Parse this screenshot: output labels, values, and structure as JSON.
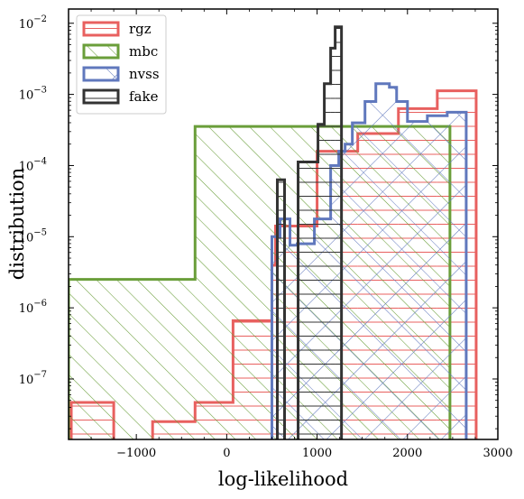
{
  "chart_data": {
    "type": "histogram",
    "title": "",
    "xlabel": "log-likelihood",
    "ylabel": "distribution",
    "xlim": [
      -1750,
      3000
    ],
    "ylim_log10": [
      -7.85,
      -1.8
    ],
    "y_scale": "log",
    "x_ticks": [
      -1000,
      0,
      1000,
      2000,
      3000
    ],
    "x_tick_labels": [
      "−1000",
      "0",
      "1000",
      "2000",
      "3000"
    ],
    "y_ticks_log10": [
      -7,
      -6,
      -5,
      -4,
      -3,
      -2
    ],
    "y_tick_labels": [
      "10",
      "10",
      "10",
      "10",
      "10",
      "10"
    ],
    "y_tick_exponents": [
      "−7",
      "−6",
      "−5",
      "−4",
      "−3",
      "−2"
    ],
    "legend_position": "top-left",
    "series": [
      {
        "name": "rgz",
        "color": "#e8605f",
        "hatch": "horizontal",
        "steps": [
          {
            "x0": -1720,
            "x1": -1250,
            "log10y": -7.33
          },
          {
            "x0": -1250,
            "x1": -820,
            "log10y": -9
          },
          {
            "x0": -820,
            "x1": -350,
            "log10y": -7.6
          },
          {
            "x0": -350,
            "x1": 70,
            "log10y": -7.33
          },
          {
            "x0": 70,
            "x1": 500,
            "log10y": -6.18
          },
          {
            "x0": 500,
            "x1": 540,
            "log10y": -5.4
          },
          {
            "x0": 540,
            "x1": 1000,
            "log10y": -4.85
          },
          {
            "x0": 1000,
            "x1": 1450,
            "log10y": -3.8
          },
          {
            "x0": 1450,
            "x1": 1900,
            "log10y": -3.55
          },
          {
            "x0": 1900,
            "x1": 2330,
            "log10y": -3.2
          },
          {
            "x0": 2330,
            "x1": 2760,
            "log10y": -2.95
          }
        ]
      },
      {
        "name": "mbc",
        "color": "#6a9e3a",
        "hatch": "diagonal",
        "steps": [
          {
            "x0": -1750,
            "x1": -350,
            "log10y": -5.6
          },
          {
            "x0": -350,
            "x1": 2470,
            "log10y": -3.45
          }
        ]
      },
      {
        "name": "nvss",
        "color": "#6078bd",
        "hatch": "cross",
        "steps": [
          {
            "x0": 500,
            "x1": 590,
            "log10y": -5.0
          },
          {
            "x0": 590,
            "x1": 700,
            "log10y": -4.75
          },
          {
            "x0": 700,
            "x1": 780,
            "log10y": -5.12
          },
          {
            "x0": 780,
            "x1": 970,
            "log10y": -5.1
          },
          {
            "x0": 970,
            "x1": 1150,
            "log10y": -4.75
          },
          {
            "x0": 1150,
            "x1": 1240,
            "log10y": -4.0
          },
          {
            "x0": 1240,
            "x1": 1310,
            "log10y": -3.8
          },
          {
            "x0": 1310,
            "x1": 1390,
            "log10y": -3.7
          },
          {
            "x0": 1390,
            "x1": 1530,
            "log10y": -3.4
          },
          {
            "x0": 1530,
            "x1": 1650,
            "log10y": -3.1
          },
          {
            "x0": 1650,
            "x1": 1800,
            "log10y": -2.85
          },
          {
            "x0": 1800,
            "x1": 1880,
            "log10y": -2.9
          },
          {
            "x0": 1880,
            "x1": 2000,
            "log10y": -3.1
          },
          {
            "x0": 2000,
            "x1": 2220,
            "log10y": -3.38
          },
          {
            "x0": 2220,
            "x1": 2440,
            "log10y": -3.3
          },
          {
            "x0": 2440,
            "x1": 2650,
            "log10y": -3.25
          }
        ]
      },
      {
        "name": "fake",
        "color": "#333333",
        "hatch": "horizontal",
        "steps": [
          {
            "x0": 560,
            "x1": 640,
            "log10y": -4.2
          },
          {
            "x0": 640,
            "x1": 790,
            "log10y": -9
          },
          {
            "x0": 790,
            "x1": 1010,
            "log10y": -3.95
          },
          {
            "x0": 1010,
            "x1": 1080,
            "log10y": -3.42
          },
          {
            "x0": 1080,
            "x1": 1150,
            "log10y": -2.85
          },
          {
            "x0": 1150,
            "x1": 1200,
            "log10y": -2.35
          },
          {
            "x0": 1200,
            "x1": 1270,
            "log10y": -2.05
          }
        ]
      }
    ]
  }
}
